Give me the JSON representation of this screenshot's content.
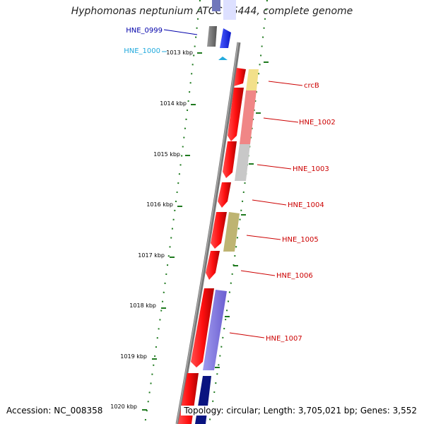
{
  "title": "Hyphomonas neptunium ATCC 15444, complete genome",
  "ticks": [
    "1013 kbp",
    "1014 kbp",
    "1015 kbp",
    "1016 kbp",
    "1017 kbp",
    "1018 kbp",
    "1019 kbp",
    "1020 kbp"
  ],
  "genes": [
    {
      "label": "HNE_0999",
      "color": "#0000aa"
    },
    {
      "label": "HNE_1000",
      "color": "#22aadd"
    },
    {
      "label": "crcB",
      "color": "#cc0000"
    },
    {
      "label": "HNE_1002",
      "color": "#cc0000"
    },
    {
      "label": "HNE_1003",
      "color": "#cc0000"
    },
    {
      "label": "HNE_1004",
      "color": "#cc0000"
    },
    {
      "label": "HNE_1005",
      "color": "#cc0000"
    },
    {
      "label": "HNE_1006",
      "color": "#cc0000"
    },
    {
      "label": "HNE_1007",
      "color": "#cc0000"
    }
  ],
  "footer": {
    "accession": "Accession: NC_008358",
    "topology": "Topology: circular; Length: 3,705,021 bp; Genes: 3,552"
  }
}
